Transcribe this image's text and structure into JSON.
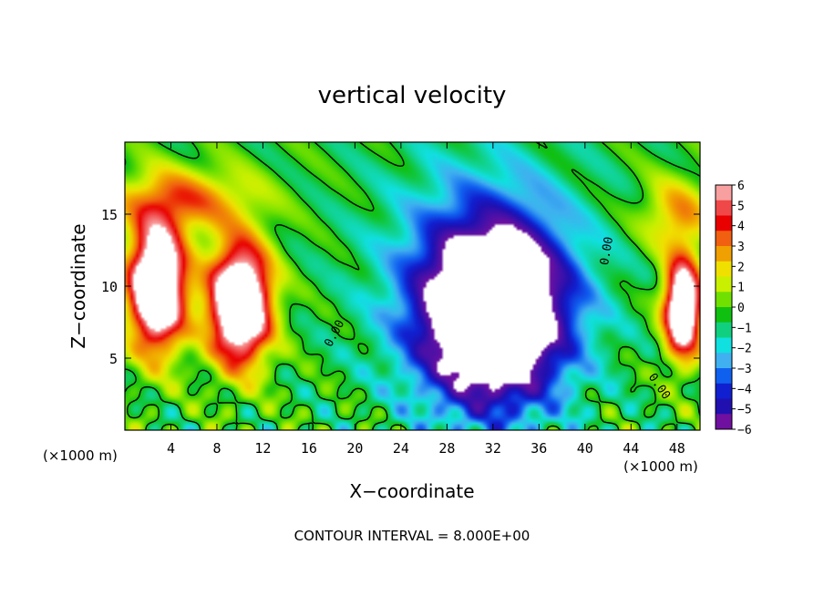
{
  "chart_data": {
    "type": "heatmap",
    "title": "vertical velocity",
    "xlabel": "X−coordinate",
    "ylabel": "Z−coordinate",
    "x_unit_label_left": "(×1000 m)",
    "x_unit_label_right": "(×1000 m)",
    "footer": "CONTOUR INTERVAL = 8.000E+00",
    "xlim": [
      0,
      50
    ],
    "ylim": [
      0,
      20
    ],
    "x_ticks": [
      4,
      8,
      12,
      16,
      20,
      24,
      28,
      32,
      36,
      40,
      44,
      48
    ],
    "y_ticks": [
      5,
      10,
      15
    ],
    "colorbar": {
      "min": -6,
      "max": 6,
      "ticks": [
        "6",
        "5",
        "4",
        "3",
        "2",
        "1",
        "0",
        "−1",
        "−2",
        "−3",
        "−4",
        "−5",
        "−6"
      ],
      "tick_values": [
        6,
        5,
        4,
        3,
        2,
        1,
        0,
        -1,
        -2,
        -3,
        -4,
        -5,
        -6
      ],
      "colors": [
        "#f8a0a0",
        "#f04848",
        "#e80000",
        "#f06010",
        "#f0a000",
        "#f0e000",
        "#c8f000",
        "#70e000",
        "#10c010",
        "#10d080",
        "#10e0e0",
        "#40b0f0",
        "#1060f0",
        "#1020d0",
        "#2010b0",
        "#7010a0"
      ],
      "color_stops": [
        6,
        5.2,
        4.5,
        3.8,
        3,
        2.2,
        1.5,
        0.7,
        0,
        -0.7,
        -1.5,
        -2.2,
        -3,
        -3.8,
        -4.5,
        -6
      ]
    },
    "contour_labels": [
      {
        "text": "0.00",
        "x": 18.5,
        "z": 6.6,
        "angle": -62
      },
      {
        "text": "0.00",
        "x": 42.2,
        "z": 12.4,
        "angle": -80
      },
      {
        "text": "0.00",
        "x": 46.2,
        "z": 2.9,
        "angle": 55
      }
    ],
    "features": {
      "updraft_cores": [
        {
          "x": 2.8,
          "z": 10.0,
          "sx": 2.4,
          "sz": 4.2,
          "amp": 11
        },
        {
          "x": 10.0,
          "z": 8.8,
          "sx": 2.6,
          "sz": 4.0,
          "amp": 11
        },
        {
          "x": 48.5,
          "z": 8.5,
          "sx": 1.6,
          "sz": 3.3,
          "amp": 10
        }
      ],
      "downdraft_core": {
        "x": 32.0,
        "z": 8.2,
        "sx": 5.8,
        "sz": 5.8,
        "amp": -11
      }
    }
  }
}
